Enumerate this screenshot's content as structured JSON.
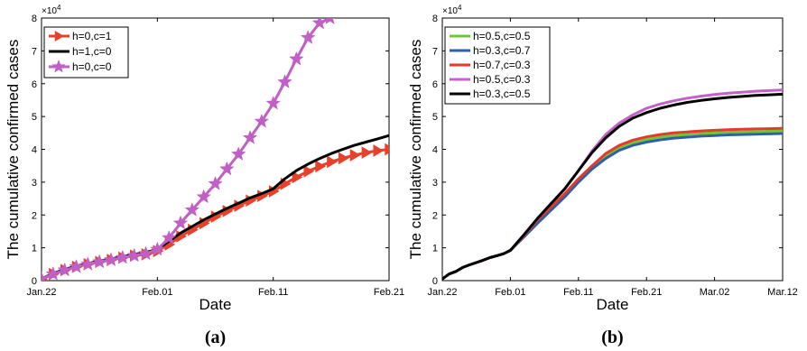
{
  "chart_data": [
    {
      "type": "line",
      "panel_label": "(a)",
      "xlabel": "Date",
      "ylabel": "The cumulative confirmed cases",
      "y_exponent": "×10",
      "y_exponent_power": "4",
      "xlim": [
        0,
        30
      ],
      "ylim": [
        0,
        8
      ],
      "yticks": [
        0,
        1,
        2,
        3,
        4,
        5,
        6,
        7,
        8
      ],
      "xticks": [
        {
          "x": 0,
          "label": "Jan.22"
        },
        {
          "x": 10,
          "label": "Feb.01"
        },
        {
          "x": 20,
          "label": "Feb.11"
        },
        {
          "x": 30,
          "label": "Feb.21"
        }
      ],
      "legend_position": "top-left",
      "series": [
        {
          "name": "h=0,c=1",
          "color": "#e8412b",
          "marker": "triangle-right",
          "x": [
            0,
            1,
            2,
            3,
            4,
            5,
            6,
            7,
            8,
            9,
            10,
            11,
            12,
            13,
            14,
            15,
            16,
            17,
            18,
            19,
            20,
            21,
            22,
            23,
            24,
            25,
            26,
            27,
            28,
            29,
            30
          ],
          "y": [
            0.05,
            0.2,
            0.32,
            0.42,
            0.5,
            0.57,
            0.63,
            0.7,
            0.76,
            0.8,
            0.9,
            1.1,
            1.35,
            1.55,
            1.75,
            1.95,
            2.12,
            2.28,
            2.44,
            2.58,
            2.72,
            2.95,
            3.15,
            3.33,
            3.48,
            3.62,
            3.73,
            3.82,
            3.9,
            3.96,
            4.0
          ]
        },
        {
          "name": "h=1,c=0",
          "color": "#000000",
          "marker": "none",
          "x": [
            0,
            1,
            2,
            3,
            4,
            5,
            6,
            7,
            8,
            9,
            10,
            11,
            12,
            13,
            14,
            15,
            16,
            17,
            18,
            19,
            20,
            21,
            22,
            23,
            24,
            25,
            26,
            27,
            28,
            29,
            30
          ],
          "y": [
            0.05,
            0.22,
            0.34,
            0.44,
            0.52,
            0.6,
            0.66,
            0.73,
            0.8,
            0.86,
            0.95,
            1.2,
            1.45,
            1.65,
            1.85,
            2.03,
            2.2,
            2.36,
            2.52,
            2.65,
            2.8,
            3.1,
            3.35,
            3.55,
            3.72,
            3.87,
            4.0,
            4.12,
            4.22,
            4.32,
            4.42
          ]
        },
        {
          "name": "h=0,c=0",
          "color": "#c05fc6",
          "marker": "star",
          "x": [
            0,
            1,
            2,
            3,
            4,
            5,
            6,
            7,
            8,
            9,
            10,
            11,
            12,
            13,
            14,
            15,
            16,
            17,
            18,
            19,
            20,
            21,
            22,
            23,
            24,
            24.9
          ],
          "y": [
            0.05,
            0.2,
            0.32,
            0.42,
            0.5,
            0.57,
            0.63,
            0.7,
            0.76,
            0.82,
            0.95,
            1.3,
            1.75,
            2.15,
            2.55,
            2.95,
            3.4,
            3.85,
            4.35,
            4.85,
            5.4,
            6.05,
            6.75,
            7.4,
            7.85,
            8.0
          ]
        }
      ]
    },
    {
      "type": "line",
      "panel_label": "(b)",
      "xlabel": "Date",
      "ylabel": "The cumulative confirmed cases",
      "y_exponent": "×10",
      "y_exponent_power": "4",
      "xlim": [
        0,
        50
      ],
      "ylim": [
        0,
        8
      ],
      "yticks": [
        0,
        1,
        2,
        3,
        4,
        5,
        6,
        7,
        8
      ],
      "xticks": [
        {
          "x": 0,
          "label": "Jan.22"
        },
        {
          "x": 10,
          "label": "Feb.01"
        },
        {
          "x": 20,
          "label": "Feb.11"
        },
        {
          "x": 30,
          "label": "Feb.21"
        },
        {
          "x": 40,
          "label": "Mar.02"
        },
        {
          "x": 50,
          "label": "Mar.12"
        }
      ],
      "legend_position": "top-left",
      "series": [
        {
          "name": "h=0.5,c=0.5",
          "color": "#74c43a",
          "x": [
            0,
            1,
            2,
            3,
            4,
            5,
            6,
            7,
            8,
            9,
            10,
            12,
            14,
            16,
            18,
            20,
            22,
            24,
            26,
            28,
            30,
            32,
            34,
            36,
            38,
            40,
            42,
            44,
            46,
            48,
            50
          ],
          "y": [
            0.05,
            0.2,
            0.28,
            0.4,
            0.48,
            0.55,
            0.62,
            0.7,
            0.76,
            0.82,
            0.92,
            1.35,
            1.8,
            2.2,
            2.6,
            3.05,
            3.45,
            3.8,
            4.05,
            4.2,
            4.3,
            4.37,
            4.42,
            4.45,
            4.48,
            4.5,
            4.52,
            4.53,
            4.54,
            4.55,
            4.56
          ]
        },
        {
          "name": "h=0.3,c=0.7",
          "color": "#2f5fa8",
          "x": [
            0,
            1,
            2,
            3,
            4,
            5,
            6,
            7,
            8,
            9,
            10,
            12,
            14,
            16,
            18,
            20,
            22,
            24,
            26,
            28,
            30,
            32,
            34,
            36,
            38,
            40,
            42,
            44,
            46,
            48,
            50
          ],
          "y": [
            0.05,
            0.2,
            0.28,
            0.4,
            0.48,
            0.55,
            0.62,
            0.7,
            0.76,
            0.82,
            0.92,
            1.33,
            1.75,
            2.15,
            2.55,
            3.0,
            3.4,
            3.72,
            3.97,
            4.12,
            4.22,
            4.29,
            4.34,
            4.37,
            4.4,
            4.42,
            4.44,
            4.45,
            4.46,
            4.47,
            4.48
          ]
        },
        {
          "name": "h=0.7,c=0.3",
          "color": "#e23a2b",
          "x": [
            0,
            1,
            2,
            3,
            4,
            5,
            6,
            7,
            8,
            9,
            10,
            12,
            14,
            16,
            18,
            20,
            22,
            24,
            26,
            28,
            30,
            32,
            34,
            36,
            38,
            40,
            42,
            44,
            46,
            48,
            50
          ],
          "y": [
            0.05,
            0.2,
            0.28,
            0.4,
            0.48,
            0.55,
            0.62,
            0.7,
            0.76,
            0.82,
            0.92,
            1.37,
            1.85,
            2.25,
            2.65,
            3.1,
            3.5,
            3.87,
            4.12,
            4.28,
            4.38,
            4.45,
            4.5,
            4.53,
            4.56,
            4.58,
            4.6,
            4.61,
            4.62,
            4.63,
            4.64
          ]
        },
        {
          "name": "h=0.5,c=0.3",
          "color": "#c560c9",
          "x": [
            0,
            1,
            2,
            3,
            4,
            5,
            6,
            7,
            8,
            9,
            10,
            12,
            14,
            16,
            18,
            20,
            22,
            24,
            26,
            28,
            30,
            32,
            34,
            36,
            38,
            40,
            42,
            44,
            46,
            48,
            50
          ],
          "y": [
            0.05,
            0.2,
            0.28,
            0.4,
            0.48,
            0.55,
            0.62,
            0.7,
            0.76,
            0.82,
            0.92,
            1.4,
            1.9,
            2.35,
            2.8,
            3.35,
            3.95,
            4.45,
            4.8,
            5.05,
            5.25,
            5.38,
            5.48,
            5.56,
            5.62,
            5.67,
            5.71,
            5.74,
            5.77,
            5.79,
            5.81
          ]
        },
        {
          "name": "h=0.3,c=0.5",
          "color": "#000000",
          "x": [
            0,
            1,
            2,
            3,
            4,
            5,
            6,
            7,
            8,
            9,
            10,
            12,
            14,
            16,
            18,
            20,
            22,
            24,
            26,
            28,
            30,
            32,
            34,
            36,
            38,
            40,
            42,
            44,
            46,
            48,
            50
          ],
          "y": [
            0.05,
            0.2,
            0.28,
            0.4,
            0.48,
            0.55,
            0.62,
            0.7,
            0.76,
            0.82,
            0.92,
            1.4,
            1.9,
            2.35,
            2.8,
            3.35,
            3.9,
            4.35,
            4.7,
            4.95,
            5.12,
            5.25,
            5.35,
            5.43,
            5.49,
            5.54,
            5.58,
            5.61,
            5.64,
            5.66,
            5.68
          ]
        }
      ]
    }
  ]
}
